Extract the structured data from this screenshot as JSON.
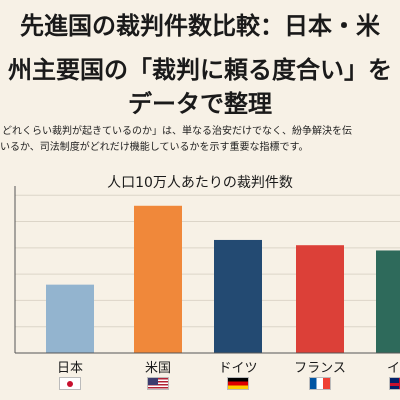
{
  "header": {
    "title_line1": "先進国の裁判件数比較：日本・米",
    "title_line2": "州主要国の「裁判に頼る度合い」を",
    "title_line3": "データで整理"
  },
  "description": {
    "line1": "どれくらい裁判が起きているのか」は、単なる治安だけでなく、紛争解決を伝",
    "line2": "いるか、司法制度がどれだけ機能しているかを示す重要な指標です。"
  },
  "chart_data": {
    "type": "bar",
    "title": "人口10万人あたりの裁判件数",
    "categories": [
      "日本",
      "米国",
      "ドイツ",
      "フランス",
      "イギ"
    ],
    "values": [
      1300,
      2800,
      2150,
      2050,
      1950
    ],
    "ylim": [
      0,
      3100
    ],
    "colors": [
      "#93b4cf",
      "#f0883a",
      "#234a72",
      "#dc4038",
      "#2e6a5b"
    ],
    "flags": [
      "flag-jp",
      "flag-us",
      "flag-de",
      "flag-fr",
      "flag-uk"
    ],
    "grid": true
  }
}
